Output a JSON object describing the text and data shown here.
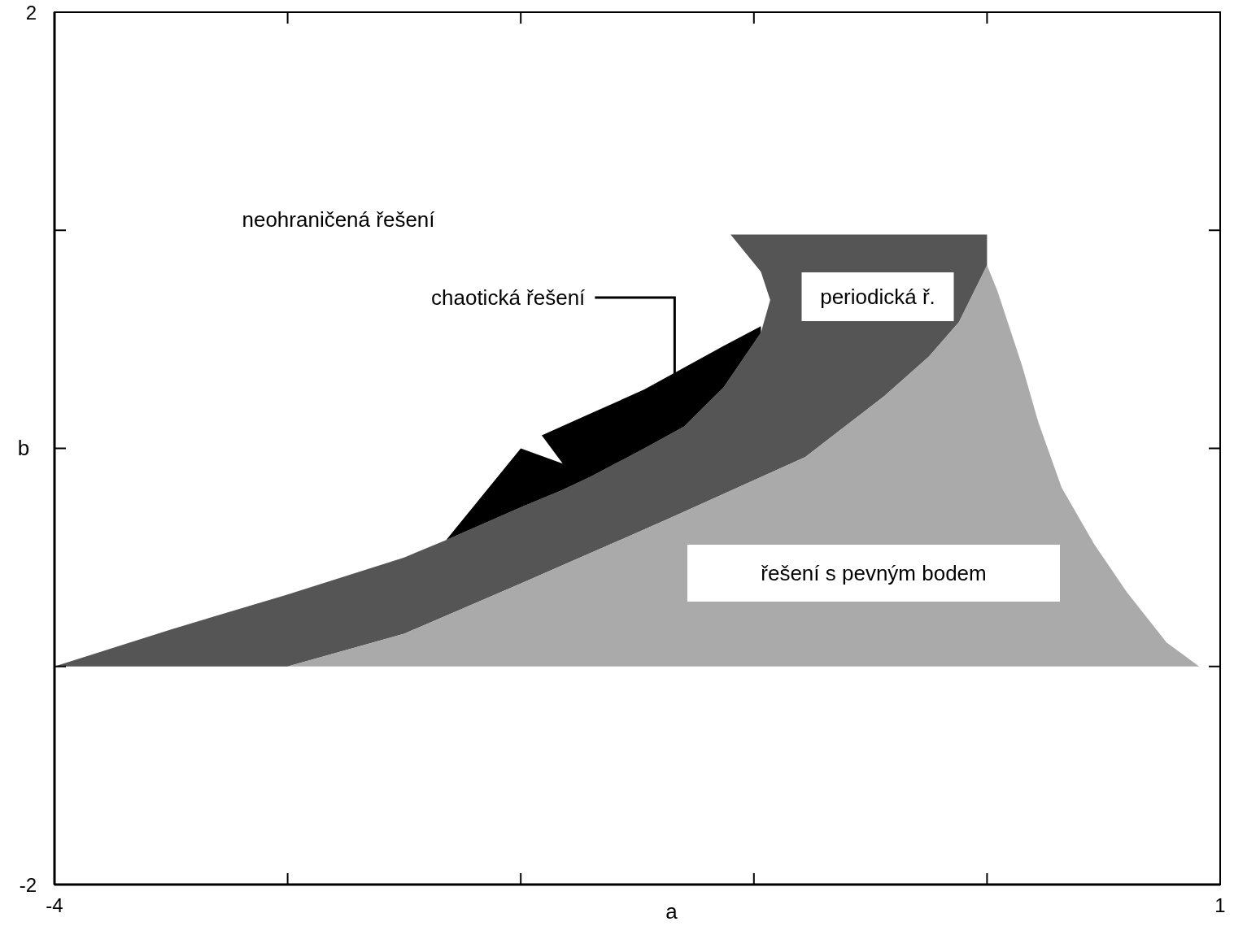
{
  "chart_data": {
    "type": "area",
    "xlabel": "a",
    "ylabel": "b",
    "xlim": [
      -4,
      1
    ],
    "ylim": [
      -2,
      2
    ],
    "xticks": [
      -4,
      {
        "value": -3,
        "label": null
      },
      {
        "value": -2,
        "label": null
      },
      {
        "value": -1,
        "label": null
      },
      {
        "value": 0,
        "label": null
      },
      1
    ],
    "yticks": [
      -2,
      {
        "value": -1,
        "label": null
      },
      {
        "value": 0,
        "label": null
      },
      {
        "value": 1,
        "label": null
      },
      2
    ],
    "series": [
      {
        "color": "#555555",
        "x": [
          -4,
          -3.5,
          -3,
          -2.5,
          -2.32,
          -2.0,
          -1.82,
          -1.7,
          -1.47,
          -1.3,
          -1.13,
          -0.97,
          -0.93,
          -0.97,
          -1.1,
          0,
          0,
          -0.12,
          -0.25,
          -0.44,
          -0.78,
          -1.36,
          -2,
          -2.5,
          -3
        ],
        "values": [
          -1,
          -0.83,
          -0.67,
          -0.5,
          -0.42,
          -0.27,
          -0.19,
          -0.13,
          0,
          0.1,
          0.28,
          0.53,
          0.68,
          0.81,
          0.98,
          0.98,
          0.84,
          0.58,
          0.42,
          0.24,
          -0.04,
          -0.32,
          -0.62,
          -0.85,
          -1
        ]
      },
      {
        "color": "#aaaaaa",
        "x": [
          -3,
          -2.5,
          -2,
          -1.36,
          -0.78,
          -0.44,
          -0.25,
          -0.12,
          0,
          0.045,
          0.15,
          0.22,
          0.32,
          0.46,
          0.6,
          0.77,
          0.91
        ],
        "values": [
          -1,
          -0.85,
          -0.62,
          -0.32,
          -0.04,
          0.24,
          0.42,
          0.58,
          0.84,
          0.72,
          0.38,
          0.12,
          -0.18,
          -0.44,
          -0.66,
          -0.89,
          -1
        ]
      },
      {
        "color": "#000000",
        "x": [
          -2.32,
          -2.0,
          -1.82,
          -1.91,
          -1.7,
          -1.47,
          -1.3,
          -1.13,
          -0.97,
          -0.97,
          -1.13,
          -1.3,
          -1.47,
          -1.7,
          -1.82,
          -2.0
        ],
        "values": [
          -0.42,
          0,
          -0.07,
          0.06,
          0.16,
          0.27,
          0.37,
          0.47,
          0.56,
          0.53,
          0.28,
          0.1,
          0,
          -0.13,
          -0.19,
          -0.27
        ]
      }
    ],
    "annotations": [
      "neohraničená řešení",
      {
        "text": "chaotická řešení",
        "x": -1.34,
        "y": 0.33
      },
      "periodická ř.",
      "řešení s pevným bodem"
    ]
  }
}
